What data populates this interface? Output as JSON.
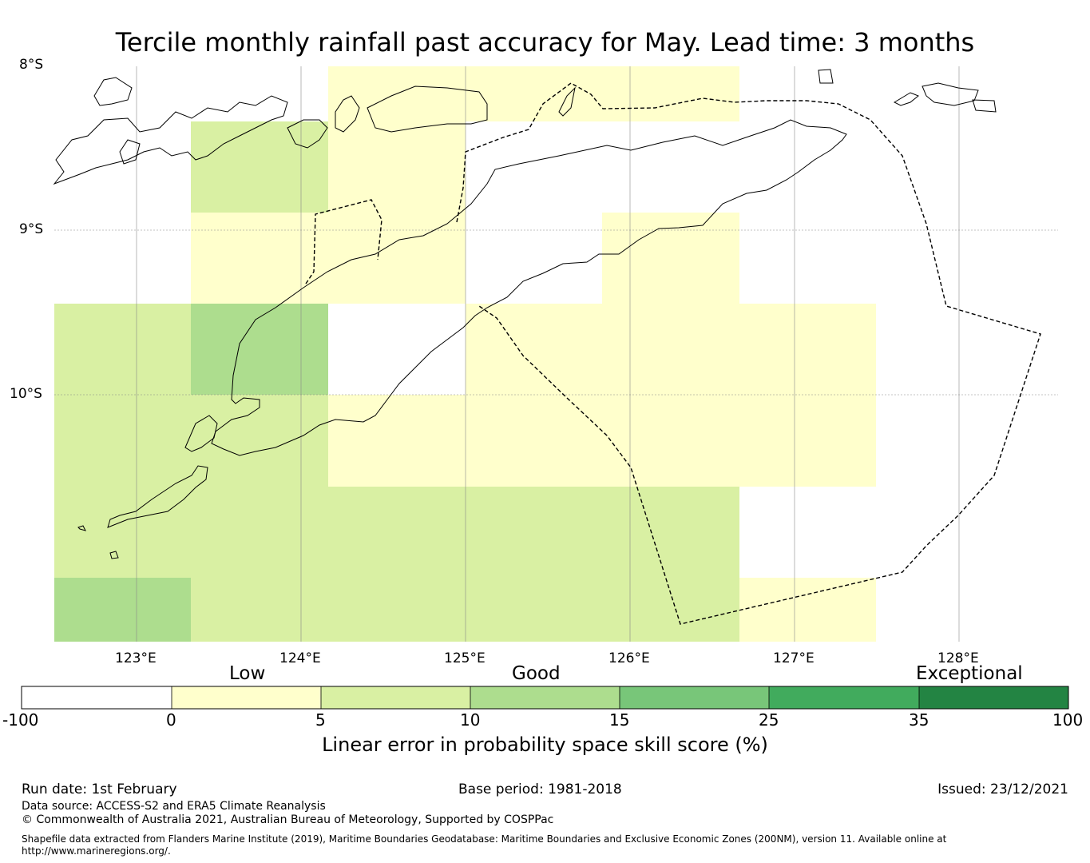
{
  "title": "Tercile monthly rainfall past accuracy for May. Lead time: 3 months",
  "map": {
    "latitude_labels": [
      "8°S",
      "9°S",
      "10°S"
    ],
    "longitude_labels": [
      "123°E",
      "124°E",
      "125°E",
      "126°E",
      "127°E",
      "128°E"
    ],
    "colors": {
      "cat_0_5": "#ffffcc",
      "cat_5_10": "#d9f0a3",
      "cat_10_15": "#addd8e",
      "no_skill": "#ffffff"
    }
  },
  "colorbar": {
    "categories": [
      "Low",
      "Good",
      "Exceptional"
    ],
    "ticks": [
      "-100",
      "0",
      "5",
      "10",
      "15",
      "25",
      "35",
      "100"
    ],
    "colors": [
      "#ffffff",
      "#ffffcc",
      "#d9f0a3",
      "#addd8e",
      "#78c679",
      "#41ab5d",
      "#238443"
    ],
    "label": "Linear error in probability space skill score (%)"
  },
  "footer": {
    "run_date": "Run date: 1st February",
    "base_period": "Base period: 1981-2018",
    "issued": "Issued: 23/12/2021",
    "data_source": "Data source: ACCESS-S2 and ERA5 Climate Reanalysis",
    "copyright": "© Commonwealth of Australia 2021, Australian Bureau of Meteorology, Supported by COSPPac",
    "shapefile_line1": "Shapefile data extracted from Flanders Marine Institute (2019), Maritime Boundaries Geodatabase: Maritime Boundaries and Exclusive Economic Zones (200NM), version 11. Available online at",
    "shapefile_line2": "http://www.marineregions.org/."
  }
}
